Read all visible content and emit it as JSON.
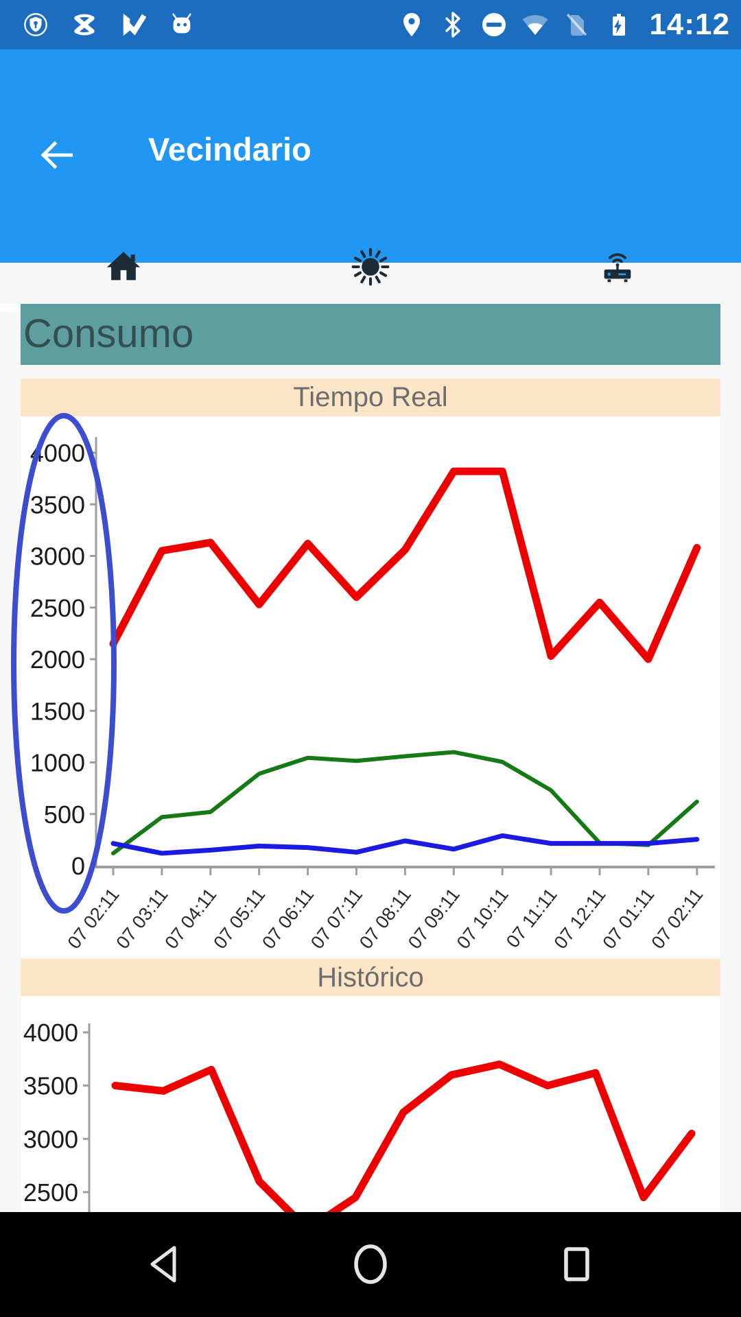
{
  "status_bar": {
    "time": "14:12",
    "left_icons": [
      "shield-lock-icon",
      "crossed-icon",
      "play-protect-icon",
      "android-icon"
    ],
    "right_icons": [
      "location-icon",
      "bluetooth-icon",
      "do-not-disturb-icon",
      "wifi-icon",
      "no-sim-icon",
      "battery-charging-icon"
    ]
  },
  "app_bar": {
    "title": "Vecindario",
    "back_button": "back-arrow"
  },
  "tab_bar": {
    "tabs": [
      {
        "name": "home",
        "icon": "home-icon",
        "selected": true
      },
      {
        "name": "brightness",
        "icon": "sun-icon",
        "selected": false
      },
      {
        "name": "devices",
        "icon": "router-icon",
        "selected": false
      }
    ]
  },
  "page": {
    "heading": "Consumo"
  },
  "chart_data": [
    {
      "type": "line",
      "title": "Tiempo Real",
      "x": [
        "07 02:11",
        "07 03:11",
        "07 04:11",
        "07 05:11",
        "07 06:11",
        "07 07:11",
        "07 08:11",
        "07 09:11",
        "07 10:11",
        "07 11:11",
        "07 12:11",
        "07 01:11",
        "07 02:11"
      ],
      "yticks": [
        0,
        500,
        1000,
        1500,
        2000,
        2500,
        3000,
        3500,
        4000
      ],
      "ylim": [
        0,
        4300
      ],
      "grid": false,
      "legend": "none",
      "series": [
        {
          "name": "series-red",
          "color": "#ee0000",
          "values": [
            2150,
            3050,
            3130,
            2530,
            3120,
            2600,
            3060,
            3820,
            3820,
            2030,
            2550,
            2000,
            3080
          ]
        },
        {
          "name": "series-green",
          "color": "#157a15",
          "values": [
            120,
            470,
            520,
            890,
            1045,
            1015,
            1060,
            1100,
            1005,
            730,
            220,
            200,
            620
          ]
        },
        {
          "name": "series-blue",
          "color": "#1a1ae0",
          "values": [
            215,
            120,
            150,
            190,
            175,
            130,
            240,
            160,
            290,
            215,
            215,
            215,
            255
          ]
        }
      ],
      "annotation": {
        "shape": "ellipse",
        "target": "y-axis-labels",
        "color": "#3c4ecf"
      }
    },
    {
      "type": "line",
      "title": "Histórico",
      "yticks": [
        2500,
        3000,
        3500,
        4000
      ],
      "grid": false,
      "legend": "none",
      "series": [
        {
          "name": "series-red",
          "color": "#ee0000",
          "values": [
            3500,
            3450,
            3650,
            2600,
            2150,
            2450,
            3250,
            3600,
            3700,
            3500,
            3620,
            2450,
            3050
          ]
        }
      ]
    }
  ],
  "nav_bar": {
    "buttons": [
      "back",
      "home",
      "recents"
    ]
  },
  "colors": {
    "status_bar_bg": "#1c6dc0",
    "app_bar_bg": "#2196f3",
    "heading_bg": "#5f9ea0",
    "heading_text": "#334f4f",
    "section_header_bg": "#fce4c6",
    "section_header_text": "#6d6d6d",
    "content_bg": "#f7f7f7",
    "nav_bar_bg": "#000000",
    "axis_gray": "#9e9e9e"
  }
}
